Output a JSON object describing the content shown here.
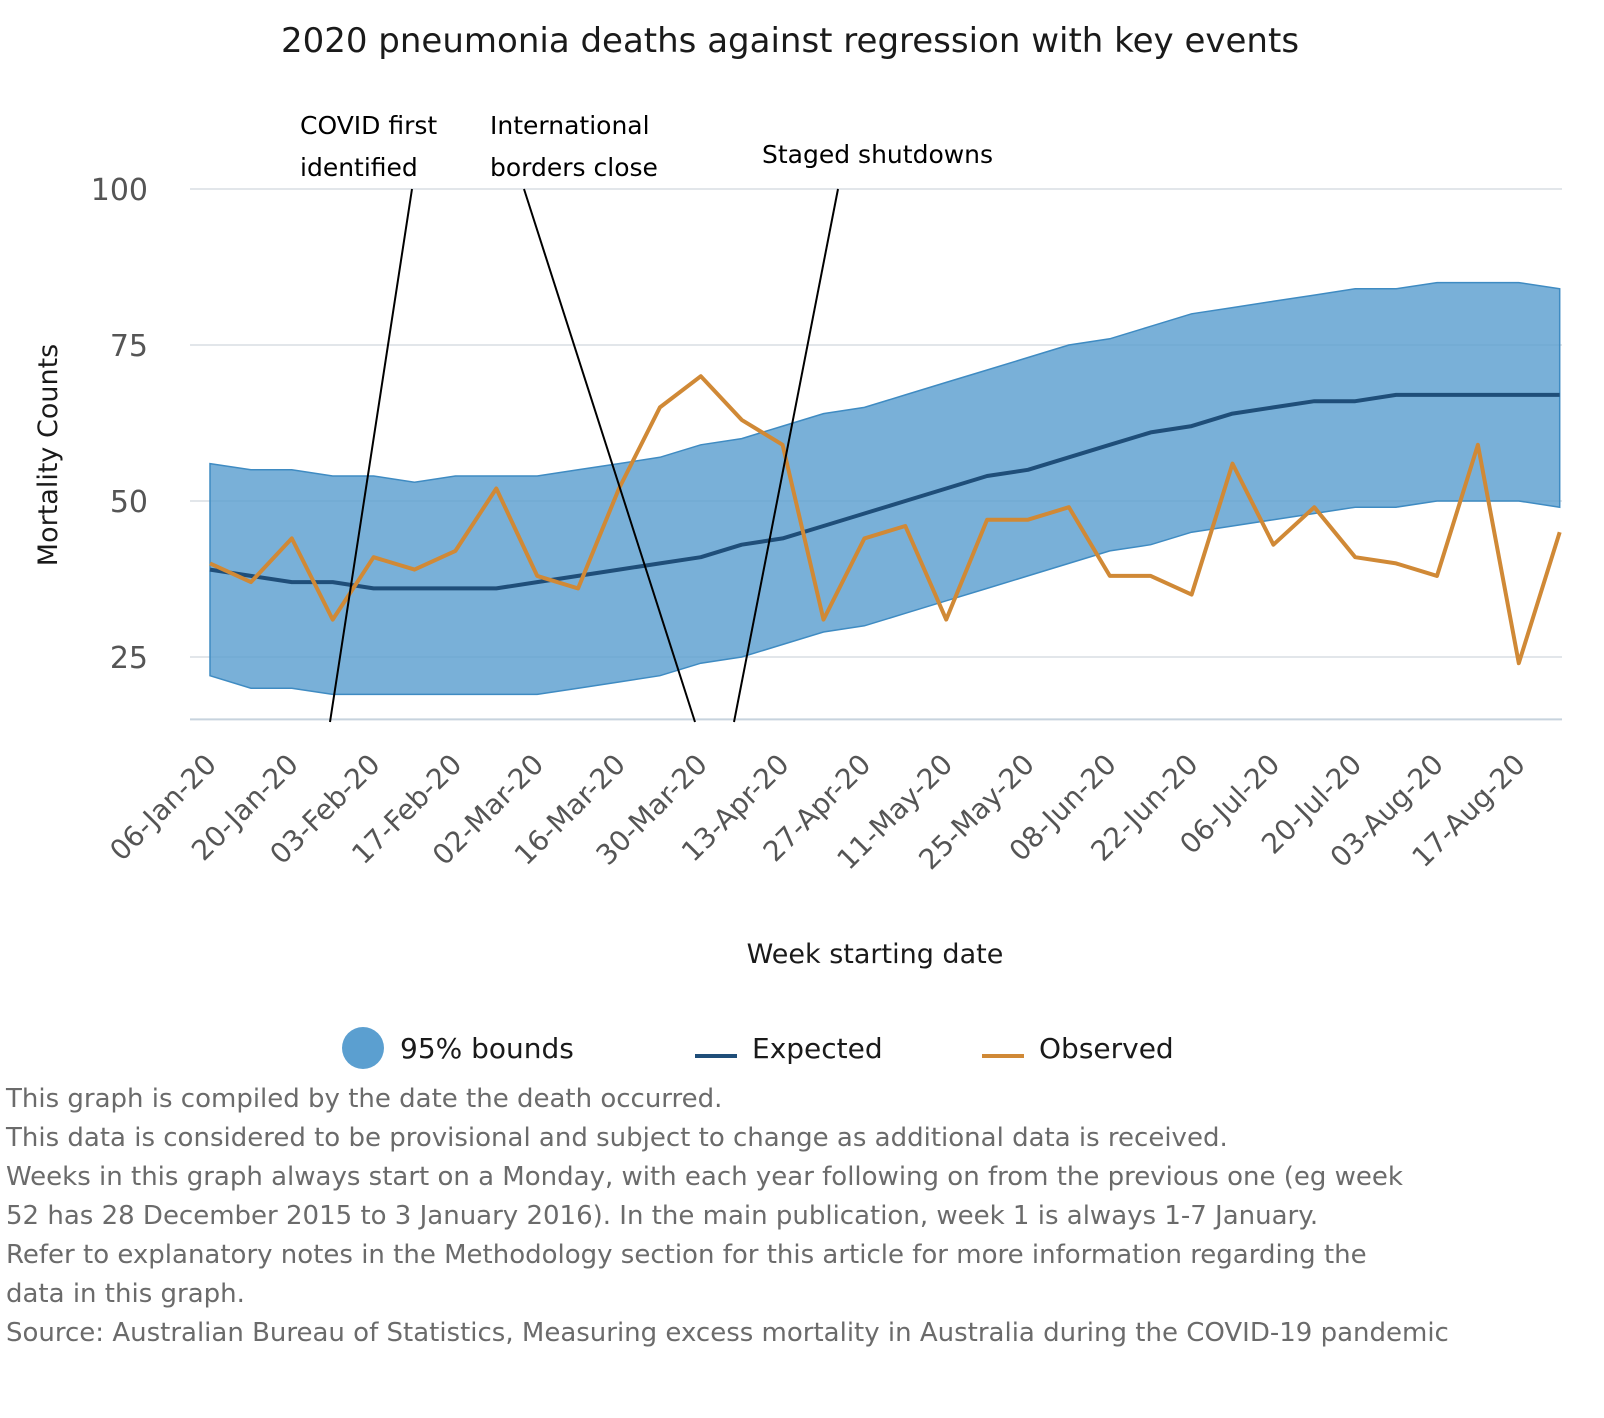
{
  "chart_data": {
    "type": "area",
    "title": "2020 pneumonia deaths against regression with key events",
    "xlabel": "Week starting date",
    "ylabel": "Mortality Counts",
    "ylim": [
      15,
      100
    ],
    "yticks": [
      25,
      50,
      75,
      100
    ],
    "grid": true,
    "legend_position": "bottom",
    "xtick_labels": [
      "06-Jan-20",
      "20-Jan-20",
      "03-Feb-20",
      "17-Feb-20",
      "02-Mar-20",
      "16-Mar-20",
      "30-Mar-20",
      "13-Apr-20",
      "27-Apr-20",
      "11-May-20",
      "25-May-20",
      "08-Jun-20",
      "22-Jun-20",
      "06-Jul-20",
      "20-Jul-20",
      "03-Aug-20",
      "17-Aug-20"
    ],
    "x": [
      "06-Jan-20",
      "13-Jan-20",
      "20-Jan-20",
      "27-Jan-20",
      "03-Feb-20",
      "10-Feb-20",
      "17-Feb-20",
      "24-Feb-20",
      "02-Mar-20",
      "09-Mar-20",
      "16-Mar-20",
      "23-Mar-20",
      "30-Mar-20",
      "06-Apr-20",
      "13-Apr-20",
      "20-Apr-20",
      "27-Apr-20",
      "04-May-20",
      "11-May-20",
      "18-May-20",
      "25-May-20",
      "01-Jun-20",
      "08-Jun-20",
      "15-Jun-20",
      "22-Jun-20",
      "29-Jun-20",
      "06-Jul-20",
      "13-Jul-20",
      "20-Jul-20",
      "27-Jul-20",
      "03-Aug-20",
      "10-Aug-20",
      "17-Aug-20",
      "24-Aug-20"
    ],
    "series": [
      {
        "name": "95% bounds",
        "kind": "band",
        "color": "#5b9fd0",
        "upper": [
          56,
          55,
          55,
          54,
          54,
          53,
          54,
          54,
          54,
          55,
          56,
          57,
          59,
          60,
          62,
          64,
          65,
          67,
          69,
          71,
          73,
          75,
          76,
          78,
          80,
          81,
          82,
          83,
          84,
          84,
          85,
          85,
          85,
          84
        ],
        "lower": [
          22,
          20,
          20,
          19,
          19,
          19,
          19,
          19,
          19,
          20,
          21,
          22,
          24,
          25,
          27,
          29,
          30,
          32,
          34,
          36,
          38,
          40,
          42,
          43,
          45,
          46,
          47,
          48,
          49,
          49,
          50,
          50,
          50,
          49
        ]
      },
      {
        "name": "Expected",
        "kind": "line",
        "color": "#1f4e79",
        "values": [
          39,
          38,
          37,
          37,
          36,
          36,
          36,
          36,
          37,
          38,
          39,
          40,
          41,
          43,
          44,
          46,
          48,
          50,
          52,
          54,
          55,
          57,
          59,
          61,
          62,
          64,
          65,
          66,
          66,
          67,
          67,
          67,
          67,
          67
        ]
      },
      {
        "name": "Observed",
        "kind": "line",
        "color": "#d08936",
        "values": [
          40,
          37,
          44,
          31,
          41,
          39,
          42,
          52,
          38,
          36,
          52,
          65,
          70,
          63,
          59,
          31,
          44,
          46,
          31,
          47,
          47,
          49,
          38,
          38,
          35,
          56,
          43,
          49,
          41,
          40,
          38,
          59,
          24,
          45
        ]
      }
    ],
    "annotations": [
      {
        "text_lines": [
          "COVID first",
          "identified"
        ]
      },
      {
        "text_lines": [
          "International",
          "borders close"
        ]
      },
      {
        "text_lines": [
          "Staged shutdowns"
        ]
      }
    ]
  },
  "notes": [
    "This graph is compiled by the date the death occurred.",
    "This data is considered to be provisional and subject to change as additional data is received.",
    "Weeks in this graph always start on a Monday, with each year following on from the previous one (eg week",
    "52 has 28 December 2015 to 3 January 2016). In the main publication, week 1 is always 1-7 January.",
    "Refer to explanatory notes in the Methodology section for this article for more information regarding the",
    "data in this graph.",
    "Source: Australian Bureau of Statistics, Measuring excess mortality in Australia during the COVID-19 pandemic"
  ]
}
